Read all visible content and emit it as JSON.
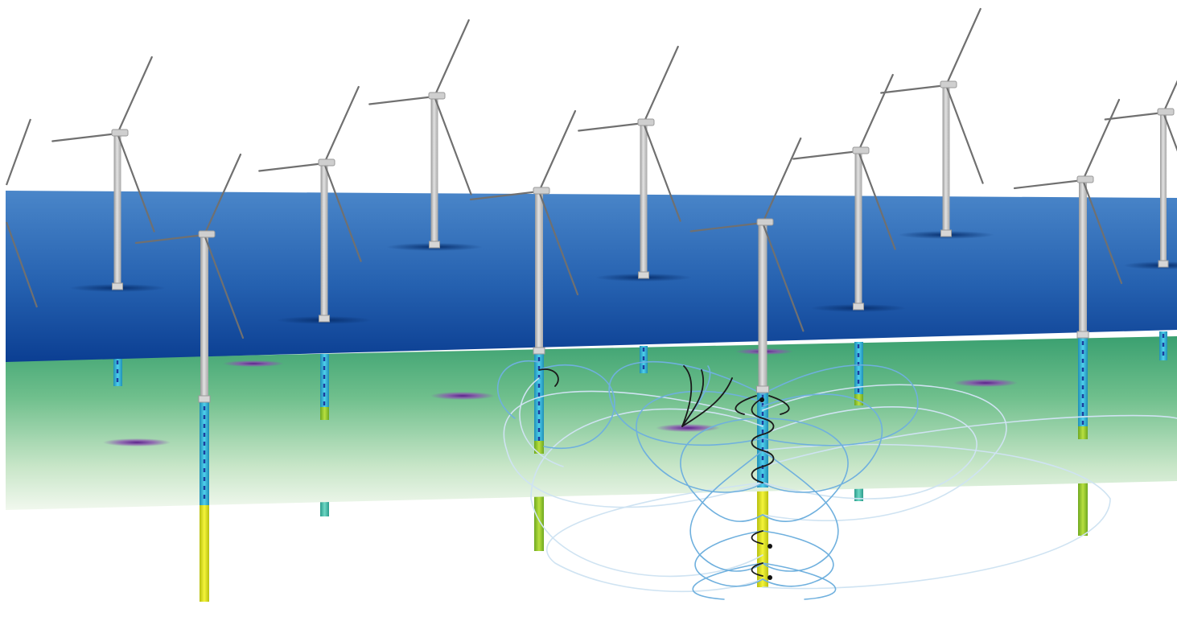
{
  "scene": {
    "description_visible_text": "",
    "colors": {
      "background": "#ffffff",
      "sea_surface_top": "#4a86c9",
      "sea_surface_bottom": "#0b3e92",
      "seabed_layer_top": "#2f9a6e",
      "seabed_layer_bottom": "#eef6ea",
      "tower": "#bfbfbf",
      "blade": "#6e6e6e",
      "pile_upper": "#2bb7d8",
      "pile_lower": "#e8e81a",
      "pile_marks": "#1d3f9e",
      "field_light": "#cfe3f2",
      "field_mid": "#6fb0de",
      "field_dark": "#1a1a1a",
      "source_spot": "#7a3ea0"
    },
    "turbine_count": 11
  }
}
